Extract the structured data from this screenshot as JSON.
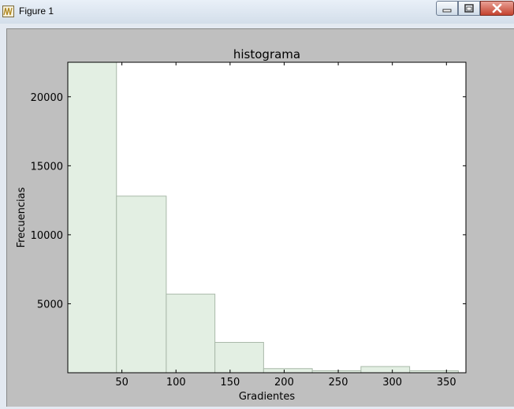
{
  "window": {
    "title": "Figure 1"
  },
  "icons": {
    "app": "figure-app-icon",
    "minimize": "minimize-icon",
    "maximize": "maximize-icon",
    "close": "close-icon"
  },
  "colors": {
    "bar_fill": "#e3efe3",
    "bar_edge": "#a9b9a9",
    "figure_bg": "#bfbfbf",
    "axes_bg": "#ffffff"
  },
  "chart_data": {
    "type": "bar",
    "title": "histograma",
    "xlabel": "Gradientes",
    "ylabel": "Frecuencias",
    "xlim": [
      0,
      368
    ],
    "ylim": [
      0,
      22500
    ],
    "xticks": [
      50,
      100,
      150,
      200,
      250,
      300,
      350
    ],
    "yticks": [
      5000,
      10000,
      15000,
      20000
    ],
    "bins": [
      {
        "x0": 0,
        "x1": 45,
        "value": 22500
      },
      {
        "x0": 45,
        "x1": 91,
        "value": 12800
      },
      {
        "x0": 91,
        "x1": 136,
        "value": 5700
      },
      {
        "x0": 136,
        "x1": 181,
        "value": 2200
      },
      {
        "x0": 181,
        "x1": 226,
        "value": 300
      },
      {
        "x0": 226,
        "x1": 271,
        "value": 150
      },
      {
        "x0": 271,
        "x1": 316,
        "value": 450
      },
      {
        "x0": 316,
        "x1": 361,
        "value": 150
      }
    ],
    "grid": false
  }
}
